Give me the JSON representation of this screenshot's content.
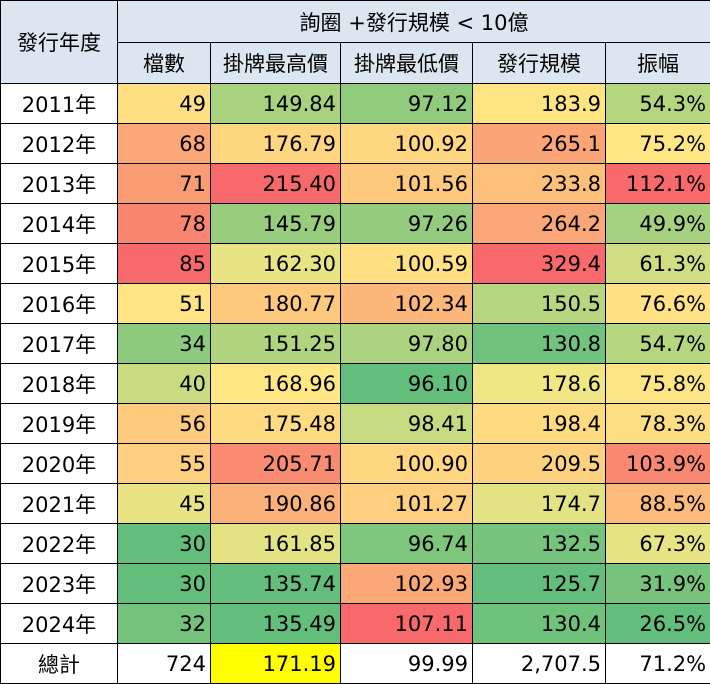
{
  "header": {
    "row_label": "發行年度",
    "group": "詢圈 +發行規模 < 10億",
    "columns": [
      "檔數",
      "掛牌最高價",
      "掛牌最低價",
      "發行規模",
      "振幅"
    ],
    "fill": "#DCE6F1"
  },
  "table": {
    "rows": [
      [
        "2011年",
        "49",
        "149.84",
        "97.12",
        "183.9",
        "54.3%"
      ],
      [
        "2012年",
        "68",
        "176.79",
        "100.92",
        "265.1",
        "75.2%"
      ],
      [
        "2013年",
        "71",
        "215.40",
        "101.56",
        "233.8",
        "112.1%"
      ],
      [
        "2014年",
        "78",
        "145.79",
        "97.26",
        "264.2",
        "49.9%"
      ],
      [
        "2015年",
        "85",
        "162.30",
        "100.59",
        "329.4",
        "61.3%"
      ],
      [
        "2016年",
        "51",
        "180.77",
        "102.34",
        "150.5",
        "76.6%"
      ],
      [
        "2017年",
        "34",
        "151.25",
        "97.80",
        "130.8",
        "54.7%"
      ],
      [
        "2018年",
        "40",
        "168.96",
        "96.10",
        "178.6",
        "75.8%"
      ],
      [
        "2019年",
        "56",
        "175.48",
        "98.41",
        "198.4",
        "78.3%"
      ],
      [
        "2020年",
        "55",
        "205.71",
        "100.90",
        "209.5",
        "103.9%"
      ],
      [
        "2021年",
        "45",
        "190.86",
        "101.27",
        "174.7",
        "88.5%"
      ],
      [
        "2022年",
        "30",
        "161.85",
        "96.74",
        "132.5",
        "67.3%"
      ],
      [
        "2023年",
        "30",
        "135.74",
        "102.93",
        "125.7",
        "31.9%"
      ],
      [
        "2024年",
        "32",
        "135.49",
        "107.11",
        "130.4",
        "26.5%"
      ],
      [
        "總計",
        "724",
        "171.19",
        "99.99",
        "2,707.5",
        "71.2%"
      ]
    ],
    "cell_colors": [
      [
        "#FEE082",
        "#A9D27F",
        "#8FCA7D",
        "#FEE582",
        "#B5D57F"
      ],
      [
        "#FBA777",
        "#FED680",
        "#FED780",
        "#FBA577",
        "#FFE784"
      ],
      [
        "#FA9D75",
        "#F8696B",
        "#FDC97D",
        "#FCC07B",
        "#F8696B"
      ],
      [
        "#F98770",
        "#98CD7E",
        "#94CB7E",
        "#FBA677",
        "#A6D17F"
      ],
      [
        "#F8696B",
        "#E8E483",
        "#FFE183",
        "#F8696B",
        "#D1DD82"
      ],
      [
        "#FFE483",
        "#FDC97D",
        "#FCB77A",
        "#B8D680",
        "#FEE283"
      ],
      [
        "#8ECA7D",
        "#B1D47F",
        "#AAD27F",
        "#70C27C",
        "#B7D680"
      ],
      [
        "#C8DB81",
        "#FFE784",
        "#63BE7B",
        "#F0E784",
        "#FEE583"
      ],
      [
        "#FDCA7E",
        "#FEDA81",
        "#C5DA81",
        "#FEDA81",
        "#FEDE82"
      ],
      [
        "#FDCF7F",
        "#F98B71",
        "#FED780",
        "#FDD27F",
        "#F98870"
      ],
      [
        "#E9E483",
        "#FBB179",
        "#FDCF7E",
        "#E4E383",
        "#FCBB7B"
      ],
      [
        "#63BE7B",
        "#E3E383",
        "#7FC67D",
        "#76C47C",
        "#E7E483"
      ],
      [
        "#63BE7B",
        "#64BE7B",
        "#FBA877",
        "#63BE7B",
        "#77C37C"
      ],
      [
        "#74C37C",
        "#63BE7B",
        "#F8696B",
        "#6EC27C",
        "#63BE7B"
      ],
      [
        "#FFFFFF",
        "#FFFF00",
        "#FFFFFF",
        "#FFFFFF",
        "#FFFFFF"
      ]
    ]
  }
}
